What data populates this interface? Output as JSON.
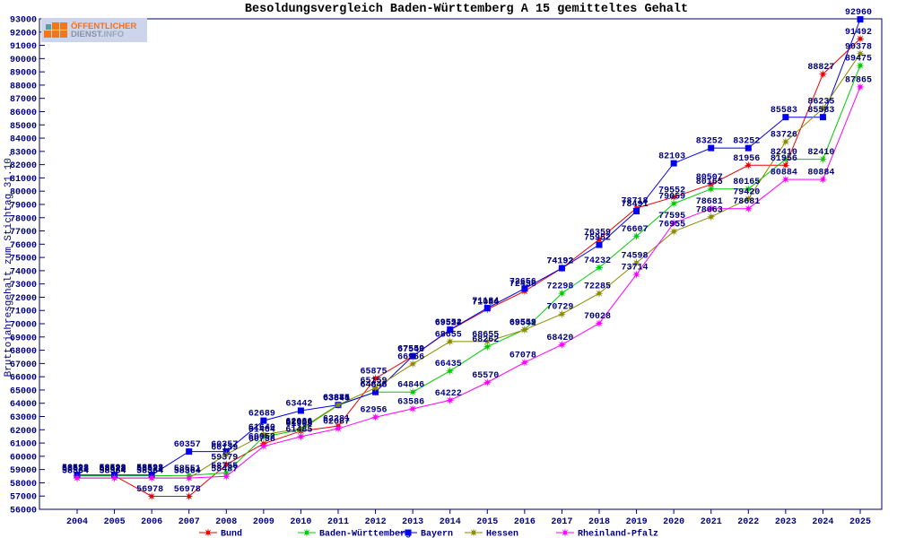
{
  "logo": {
    "line1": "ÖFFENTLICHER",
    "line2a": "DIENST.",
    "line2b": "INFO"
  },
  "chart_data": {
    "type": "line",
    "title": "Besoldungsvergleich Baden-Württemberg A 15 gemitteltes Gehalt",
    "ylabel": "Bruttojahresgehalt zum Stichtag 31.10.",
    "xlabel": "",
    "x": [
      2004,
      2005,
      2006,
      2007,
      2008,
      2009,
      2010,
      2011,
      2012,
      2013,
      2014,
      2015,
      2016,
      2017,
      2018,
      2019,
      2020,
      2021,
      2022,
      2023,
      2024,
      2025
    ],
    "ylim": [
      56000,
      93000
    ],
    "ytick_step": 1000,
    "grid": false,
    "legend_position": "bottom",
    "axis_color": "#000080",
    "label_color": "#000080",
    "title_color": "#000000",
    "point_labels": true,
    "series": [
      {
        "name": "Bund",
        "color": "#ee0000",
        "marker": "star",
        "values": [
          58528,
          58528,
          56978,
          56978,
          59379,
          60952,
          61905,
          62281,
          65875,
          67546,
          69524,
          71084,
          72456,
          74192,
          76359,
          78718,
          79552,
          80507,
          81956,
          81956,
          88827,
          91492
        ]
      },
      {
        "name": "Baden-Württemberg",
        "color": "#00cc00",
        "marker": "star",
        "values": [
          58528,
          58528,
          58528,
          58551,
          58755,
          61464,
          62006,
          63846,
          64846,
          64846,
          66435,
          68262,
          69559,
          72298,
          74232,
          76607,
          79059,
          80165,
          80165,
          82410,
          82410,
          89475
        ]
      },
      {
        "name": "Bayern",
        "color": "#0000ee",
        "marker": "square",
        "values": [
          58593,
          58593,
          58593,
          60357,
          60357,
          62689,
          63442,
          63875,
          64848,
          67559,
          69552,
          71184,
          72656,
          74192,
          75952,
          78491,
          82103,
          83252,
          83252,
          85583,
          85583,
          92960
        ]
      },
      {
        "name": "Hessen",
        "color": "#8b8b00",
        "marker": "star",
        "values": [
          58364,
          58364,
          58364,
          58364,
          60139,
          61640,
          62086,
          63881,
          65159,
          66966,
          68655,
          68655,
          69542,
          70729,
          72285,
          74598,
          76955,
          78063,
          79420,
          83726,
          86235,
          90378
        ]
      },
      {
        "name": "Rheinland-Pfalz",
        "color": "#ff00ff",
        "marker": "star",
        "values": [
          58364,
          58364,
          58364,
          58364,
          58487,
          60758,
          61485,
          62087,
          62956,
          63586,
          64222,
          65570,
          67078,
          68420,
          70028,
          73714,
          77595,
          78681,
          78681,
          80884,
          80884,
          87865
        ]
      }
    ]
  }
}
